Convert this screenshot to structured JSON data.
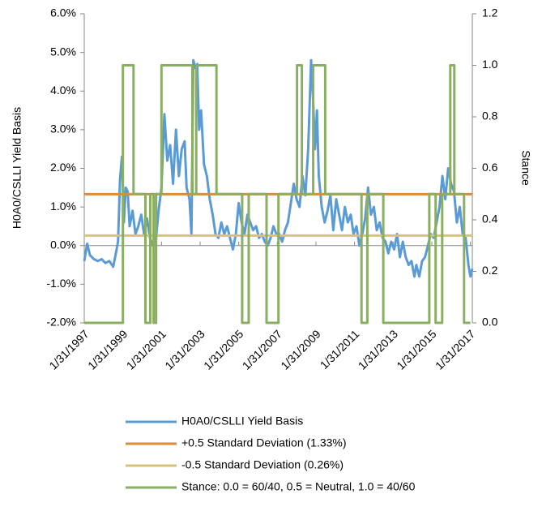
{
  "chart_data": {
    "type": "line",
    "y_label": "H0A0/CSLLI Yield Basis",
    "y2_label": "Stance",
    "xlim": [
      1997,
      2017.1
    ],
    "xticks": [
      {
        "value": 1997,
        "label": "1/31/1997"
      },
      {
        "value": 1999,
        "label": "1/31/1999"
      },
      {
        "value": 2001,
        "label": "1/31/2001"
      },
      {
        "value": 2003,
        "label": "1/31/2003"
      },
      {
        "value": 2005,
        "label": "1/31/2005"
      },
      {
        "value": 2007,
        "label": "1/31/2007"
      },
      {
        "value": 2009,
        "label": "1/31/2009"
      },
      {
        "value": 2011,
        "label": "1/31/2011"
      },
      {
        "value": 2013,
        "label": "1/31/2013"
      },
      {
        "value": 2015,
        "label": "1/31/2015"
      },
      {
        "value": 2017,
        "label": "1/31/2017"
      }
    ],
    "ylim": [
      -2,
      6
    ],
    "yticks": [
      {
        "value": -2,
        "label": "-2.0%"
      },
      {
        "value": -1,
        "label": "-1.0%"
      },
      {
        "value": 0,
        "label": "0.0%"
      },
      {
        "value": 1,
        "label": "1.0%"
      },
      {
        "value": 2,
        "label": "2.0%"
      },
      {
        "value": 3,
        "label": "3.0%"
      },
      {
        "value": 4,
        "label": "4.0%"
      },
      {
        "value": 5,
        "label": "5.0%"
      },
      {
        "value": 6,
        "label": "6.0%"
      }
    ],
    "y2lim": [
      0,
      1.2
    ],
    "y2ticks": [
      {
        "value": 0,
        "label": "0.0"
      },
      0.2,
      0.4,
      0.6,
      0.8,
      {
        "value": 1,
        "label": "1.0"
      },
      1.2
    ],
    "grid": false,
    "legend": "bottom",
    "series": [
      {
        "name": "H0A0/CSLLI Yield Basis",
        "color": "#5b9bd5",
        "x": [
          1997.0,
          1997.15,
          1997.3,
          1997.5,
          1997.7,
          1997.9,
          1998.1,
          1998.3,
          1998.5,
          1998.6,
          1998.75,
          1998.85,
          1998.95,
          1999.05,
          1999.15,
          1999.25,
          1999.35,
          1999.5,
          1999.65,
          1999.8,
          1999.95,
          2000.1,
          2000.25,
          2000.4,
          2000.55,
          2000.7,
          2000.85,
          2001.0,
          2001.15,
          2001.3,
          2001.45,
          2001.6,
          2001.75,
          2001.9,
          2002.05,
          2002.2,
          2002.3,
          2002.45,
          2002.55,
          2002.65,
          2002.75,
          2002.85,
          2002.95,
          2003.05,
          2003.2,
          2003.35,
          2003.5,
          2003.65,
          2003.8,
          2003.95,
          2004.1,
          2004.25,
          2004.4,
          2004.55,
          2004.7,
          2004.85,
          2005.0,
          2005.15,
          2005.3,
          2005.45,
          2005.6,
          2005.75,
          2005.9,
          2006.05,
          2006.2,
          2006.35,
          2006.5,
          2006.65,
          2006.8,
          2006.95,
          2007.1,
          2007.25,
          2007.4,
          2007.55,
          2007.7,
          2007.85,
          2008.0,
          2008.15,
          2008.3,
          2008.45,
          2008.6,
          2008.75,
          2008.85,
          2008.95,
          2009.05,
          2009.15,
          2009.3,
          2009.45,
          2009.6,
          2009.75,
          2009.9,
          2010.05,
          2010.2,
          2010.35,
          2010.5,
          2010.65,
          2010.8,
          2010.95,
          2011.1,
          2011.25,
          2011.4,
          2011.55,
          2011.7,
          2011.85,
          2012.0,
          2012.15,
          2012.3,
          2012.45,
          2012.6,
          2012.75,
          2012.9,
          2013.05,
          2013.2,
          2013.35,
          2013.5,
          2013.65,
          2013.8,
          2013.95,
          2014.1,
          2014.2,
          2014.35,
          2014.5,
          2014.65,
          2014.8,
          2014.95,
          2015.1,
          2015.25,
          2015.4,
          2015.55,
          2015.7,
          2015.85,
          2016.0,
          2016.15,
          2016.3,
          2016.45,
          2016.6,
          2016.75,
          2016.9,
          2017.0,
          2017.1
        ],
        "values": [
          -0.4,
          0.05,
          -0.25,
          -0.35,
          -0.4,
          -0.35,
          -0.45,
          -0.4,
          -0.55,
          -0.3,
          0.1,
          1.7,
          2.3,
          0.6,
          1.5,
          1.4,
          0.5,
          0.9,
          0.3,
          0.5,
          0.8,
          0.3,
          0.7,
          0.2,
          0,
          0.1,
          0.9,
          1.5,
          3.4,
          2.2,
          2.6,
          1.6,
          3.0,
          1.8,
          2.5,
          2.7,
          1.5,
          1.2,
          0.3,
          4.8,
          4.6,
          4.7,
          3.0,
          3.5,
          2.1,
          1.8,
          1.2,
          0.8,
          0.3,
          0.2,
          0.6,
          0.3,
          0.5,
          0.2,
          -0.1,
          0.3,
          1.1,
          0.6,
          0.3,
          0.8,
          0.6,
          0.4,
          0.5,
          0.2,
          0.3,
          0.1,
          0,
          0.2,
          0.5,
          0.3,
          0.3,
          0.1,
          0.4,
          0.6,
          1.1,
          1.6,
          1.2,
          1.0,
          1.8,
          1.3,
          2.5,
          4.8,
          3.8,
          2.5,
          3.5,
          1.8,
          1.0,
          0.6,
          0.9,
          1.3,
          0.4,
          1.2,
          0.8,
          0.4,
          1.0,
          0.6,
          0.8,
          0.3,
          0.5,
          0,
          0.3,
          0.7,
          1.5,
          0.8,
          1.0,
          0.4,
          0.6,
          0.2,
          0.1,
          -0.2,
          0.1,
          -0.1,
          0.3,
          -0.3,
          0.1,
          -0.3,
          -0.5,
          -0.4,
          -0.8,
          -0.5,
          -0.8,
          -0.4,
          -0.3,
          0,
          0.3,
          0.2,
          0.6,
          1.0,
          1.8,
          1.2,
          2.0,
          1.6,
          1.4,
          0.6,
          1.0,
          0.3,
          0.2,
          -0.5,
          -0.8,
          -0.6
        ]
      },
      {
        "name": "+0.5 Standard Deviation (1.33%)",
        "color": "#e08a35",
        "x": [
          1997,
          2017.1
        ],
        "values": [
          1.33,
          1.33
        ]
      },
      {
        "name": "-0.5 Standard Deviation (0.26%)",
        "color": "#d6c27c",
        "x": [
          1997,
          2017.1
        ],
        "values": [
          0.26,
          0.26
        ]
      },
      {
        "name": "Stance: 0.0 = 60/40, 0.5 = Neutral, 1.0 = 40/60",
        "color": "#8aae62",
        "axis": "y2",
        "x": [
          1997,
          1999,
          1999,
          1999.55,
          1999.55,
          2000.17,
          2000.17,
          2000.42,
          2000.42,
          2000.59,
          2000.59,
          2000.72,
          2000.72,
          2001,
          2001,
          2002.6,
          2002.6,
          2002.8,
          2002.8,
          2003.85,
          2003.85,
          2005.18,
          2005.18,
          2005.52,
          2005.52,
          2006.44,
          2006.44,
          2007.06,
          2007.06,
          2008.02,
          2008.02,
          2008.27,
          2008.27,
          2008.86,
          2008.86,
          2009.48,
          2009.48,
          2011.36,
          2011.36,
          2011.66,
          2011.66,
          2012.49,
          2012.49,
          2014.87,
          2014.87,
          2015.2,
          2015.2,
          2015.54,
          2015.54,
          2015.96,
          2015.96,
          2016.17,
          2016.17,
          2016.67,
          2016.67,
          2017.0
        ],
        "values": [
          0,
          0,
          1,
          1,
          0.5,
          0.5,
          0,
          0,
          0.5,
          0.5,
          0,
          0,
          0.5,
          0.5,
          1,
          1,
          0.5,
          0.5,
          1,
          1,
          0.5,
          0.5,
          0,
          0,
          0.5,
          0.5,
          0,
          0,
          0.5,
          0.5,
          1,
          1,
          0.5,
          0.5,
          1,
          1,
          0.5,
          0.5,
          0,
          0,
          0.5,
          0.5,
          0,
          0,
          0.5,
          0.5,
          0,
          0,
          0.5,
          0.5,
          1,
          1,
          0.5,
          0.5,
          0,
          0
        ]
      }
    ]
  }
}
